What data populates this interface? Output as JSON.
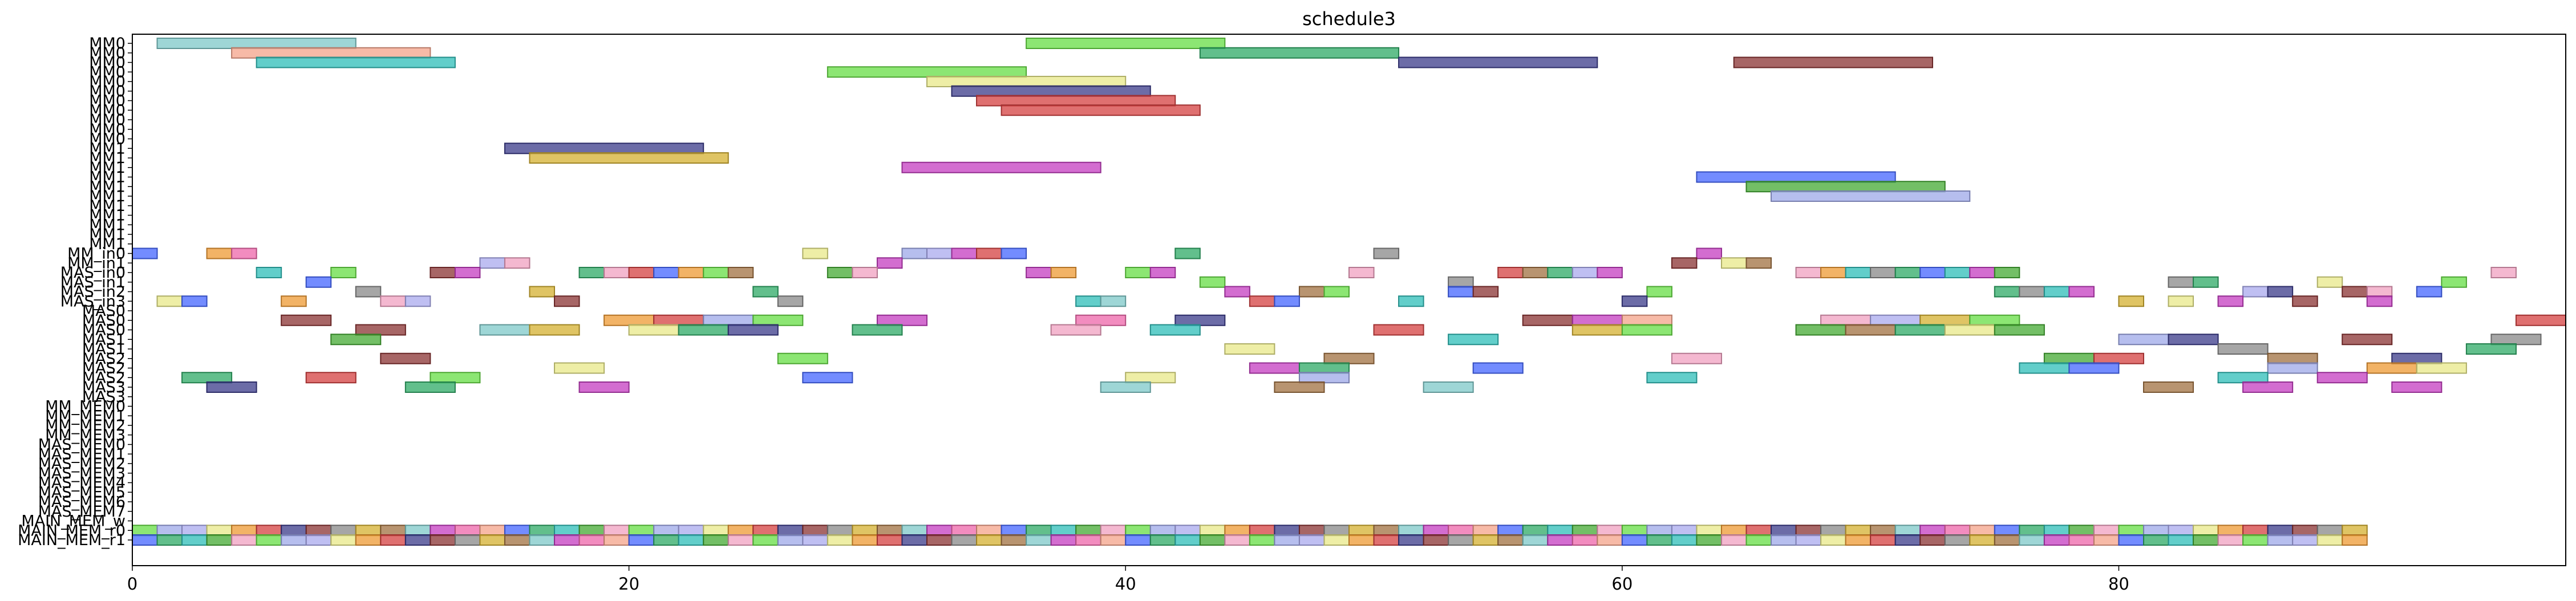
{
  "chart_data": {
    "type": "gantt",
    "title": "schedule3",
    "xlabel": "",
    "ylabel": "",
    "xlim": [
      0,
      98
    ],
    "xticks": [
      0,
      20,
      40,
      60,
      80
    ],
    "grid": false,
    "rows": [
      "MM0",
      "MM0",
      "MM0",
      "MM0",
      "MM0",
      "MM0",
      "MM0",
      "MM0",
      "MM0",
      "MM0",
      "MM0",
      "MM1",
      "MM1",
      "MM1",
      "MM1",
      "MM1",
      "MM1",
      "MM1",
      "MM1",
      "MM1",
      "MM1",
      "MM1",
      "MM_in0",
      "MM_in1",
      "MAS_in0",
      "MAS_in1",
      "MAS_in2",
      "MAS_in3",
      "MAS0",
      "MAS0",
      "MAS0",
      "MAS1",
      "MAS1",
      "MAS2",
      "MAS2",
      "MAS2",
      "MAS3",
      "MAS3",
      "MM_MEM0",
      "MM_MEM1",
      "MM_MEM2",
      "MM_MEM3",
      "MAS_MEM0",
      "MAS_MEM1",
      "MAS_MEM2",
      "MAS_MEM3",
      "MAS_MEM4",
      "MAS_MEM5",
      "MAS_MEM6",
      "MAS_MEM7",
      "MAIN_MEM_w",
      "MAIN_MEM_r0",
      "MAIN_MEM_r1"
    ],
    "palette": [
      "#7ec8c8",
      "#f4a38a",
      "#2ebdb8",
      "#66dd44",
      "#e8e888",
      "#3b3b8a",
      "#d4b030",
      "#c43cc0",
      "#4466ff",
      "#44aa33",
      "#9ea8e8",
      "#ee9933",
      "#8a3333",
      "#a07040",
      "#ee66aa",
      "#2eaa66",
      "#f0a0c0",
      "#aaaaee",
      "#d44040",
      "#888888"
    ],
    "tasks": [
      {
        "row": 0,
        "start": 1,
        "end": 9,
        "c": 0
      },
      {
        "row": 0,
        "start": 36,
        "end": 44,
        "c": 3
      },
      {
        "row": 1,
        "start": 4,
        "end": 12,
        "c": 1
      },
      {
        "row": 1,
        "start": 43,
        "end": 51,
        "c": 15
      },
      {
        "row": 2,
        "start": 5,
        "end": 13,
        "c": 2
      },
      {
        "row": 2,
        "start": 51,
        "end": 59,
        "c": 5
      },
      {
        "row": 2,
        "start": 64.5,
        "end": 72.5,
        "c": 12
      },
      {
        "row": 3,
        "start": 28,
        "end": 36,
        "c": 3
      },
      {
        "row": 4,
        "start": 32,
        "end": 40,
        "c": 4
      },
      {
        "row": 5,
        "start": 33,
        "end": 41,
        "c": 5
      },
      {
        "row": 6,
        "start": 34,
        "end": 42,
        "c": 18
      },
      {
        "row": 7,
        "start": 35,
        "end": 43,
        "c": 18
      },
      {
        "row": 11,
        "start": 15,
        "end": 23,
        "c": 5
      },
      {
        "row": 12,
        "start": 16,
        "end": 24,
        "c": 6
      },
      {
        "row": 13,
        "start": 31,
        "end": 39,
        "c": 7
      },
      {
        "row": 14,
        "start": 63,
        "end": 71,
        "c": 8
      },
      {
        "row": 15,
        "start": 65,
        "end": 73,
        "c": 9
      },
      {
        "row": 16,
        "start": 66,
        "end": 74,
        "c": 10
      },
      {
        "row": 22,
        "start": 0,
        "end": 1,
        "c": 8
      },
      {
        "row": 22,
        "start": 3,
        "end": 4,
        "c": 11
      },
      {
        "row": 22,
        "start": 4,
        "end": 5,
        "c": 14
      },
      {
        "row": 22,
        "start": 27,
        "end": 28,
        "c": 4
      },
      {
        "row": 22,
        "start": 31,
        "end": 32,
        "c": 10
      },
      {
        "row": 22,
        "start": 32,
        "end": 33,
        "c": 17
      },
      {
        "row": 22,
        "start": 33,
        "end": 34,
        "c": 7
      },
      {
        "row": 22,
        "start": 34,
        "end": 35,
        "c": 18
      },
      {
        "row": 22,
        "start": 35,
        "end": 36,
        "c": 8
      },
      {
        "row": 22,
        "start": 42,
        "end": 43,
        "c": 15
      },
      {
        "row": 22,
        "start": 50,
        "end": 51,
        "c": 19
      },
      {
        "row": 22,
        "start": 63,
        "end": 64,
        "c": 7
      },
      {
        "row": 23,
        "start": 14,
        "end": 15,
        "c": 17
      },
      {
        "row": 23,
        "start": 15,
        "end": 16,
        "c": 16
      },
      {
        "row": 23,
        "start": 30,
        "end": 31,
        "c": 7
      },
      {
        "row": 23,
        "start": 62,
        "end": 63,
        "c": 12
      },
      {
        "row": 23,
        "start": 64,
        "end": 65,
        "c": 4
      },
      {
        "row": 23,
        "start": 65,
        "end": 66,
        "c": 13
      },
      {
        "row": 24,
        "start": 5,
        "end": 6,
        "c": 2
      },
      {
        "row": 24,
        "start": 8,
        "end": 9,
        "c": 3
      },
      {
        "row": 24,
        "start": 12,
        "end": 13,
        "c": 12
      },
      {
        "row": 24,
        "start": 13,
        "end": 14,
        "c": 7
      },
      {
        "row": 24,
        "start": 18,
        "end": 19,
        "c": 15
      },
      {
        "row": 24,
        "start": 19,
        "end": 20,
        "c": 16
      },
      {
        "row": 24,
        "start": 20,
        "end": 21,
        "c": 18
      },
      {
        "row": 24,
        "start": 21,
        "end": 22,
        "c": 8
      },
      {
        "row": 24,
        "start": 22,
        "end": 23,
        "c": 11
      },
      {
        "row": 24,
        "start": 23,
        "end": 24,
        "c": 3
      },
      {
        "row": 24,
        "start": 24,
        "end": 25,
        "c": 13
      },
      {
        "row": 24,
        "start": 28,
        "end": 29,
        "c": 9
      },
      {
        "row": 24,
        "start": 29,
        "end": 30,
        "c": 16
      },
      {
        "row": 24,
        "start": 36,
        "end": 37,
        "c": 7
      },
      {
        "row": 24,
        "start": 37,
        "end": 38,
        "c": 11
      },
      {
        "row": 24,
        "start": 40,
        "end": 41,
        "c": 3
      },
      {
        "row": 24,
        "start": 41,
        "end": 42,
        "c": 7
      },
      {
        "row": 24,
        "start": 49,
        "end": 50,
        "c": 16
      },
      {
        "row": 24,
        "start": 55,
        "end": 56,
        "c": 18
      },
      {
        "row": 24,
        "start": 56,
        "end": 57,
        "c": 13
      },
      {
        "row": 24,
        "start": 57,
        "end": 58,
        "c": 15
      },
      {
        "row": 24,
        "start": 58,
        "end": 59,
        "c": 17
      },
      {
        "row": 24,
        "start": 59,
        "end": 60,
        "c": 7
      },
      {
        "row": 24,
        "start": 67,
        "end": 68,
        "c": 16
      },
      {
        "row": 24,
        "start": 68,
        "end": 69,
        "c": 11
      },
      {
        "row": 24,
        "start": 69,
        "end": 70,
        "c": 2
      },
      {
        "row": 24,
        "start": 70,
        "end": 71,
        "c": 19
      },
      {
        "row": 24,
        "start": 71,
        "end": 72,
        "c": 15
      },
      {
        "row": 24,
        "start": 72,
        "end": 73,
        "c": 8
      },
      {
        "row": 24,
        "start": 73,
        "end": 74,
        "c": 2
      },
      {
        "row": 24,
        "start": 74,
        "end": 75,
        "c": 7
      },
      {
        "row": 24,
        "start": 75,
        "end": 76,
        "c": 9
      },
      {
        "row": 24,
        "start": 95,
        "end": 96,
        "c": 16
      },
      {
        "row": 25,
        "start": 7,
        "end": 8,
        "c": 8
      },
      {
        "row": 25,
        "start": 43,
        "end": 44,
        "c": 3
      },
      {
        "row": 25,
        "start": 53,
        "end": 54,
        "c": 19
      },
      {
        "row": 25,
        "start": 82,
        "end": 83,
        "c": 19
      },
      {
        "row": 25,
        "start": 83,
        "end": 84,
        "c": 15
      },
      {
        "row": 25,
        "start": 88,
        "end": 89,
        "c": 4
      },
      {
        "row": 25,
        "start": 93,
        "end": 94,
        "c": 3
      },
      {
        "row": 26,
        "start": 9,
        "end": 10,
        "c": 19
      },
      {
        "row": 26,
        "start": 16,
        "end": 17,
        "c": 6
      },
      {
        "row": 26,
        "start": 25,
        "end": 26,
        "c": 15
      },
      {
        "row": 26,
        "start": 44,
        "end": 45,
        "c": 7
      },
      {
        "row": 26,
        "start": 47,
        "end": 48,
        "c": 13
      },
      {
        "row": 26,
        "start": 48,
        "end": 49,
        "c": 3
      },
      {
        "row": 26,
        "start": 53,
        "end": 54,
        "c": 8
      },
      {
        "row": 26,
        "start": 54,
        "end": 55,
        "c": 12
      },
      {
        "row": 26,
        "start": 61,
        "end": 62,
        "c": 3
      },
      {
        "row": 26,
        "start": 75,
        "end": 76,
        "c": 15
      },
      {
        "row": 26,
        "start": 76,
        "end": 77,
        "c": 19
      },
      {
        "row": 26,
        "start": 77,
        "end": 78,
        "c": 2
      },
      {
        "row": 26,
        "start": 78,
        "end": 79,
        "c": 7
      },
      {
        "row": 26,
        "start": 85,
        "end": 86,
        "c": 17
      },
      {
        "row": 26,
        "start": 86,
        "end": 87,
        "c": 5
      },
      {
        "row": 26,
        "start": 89,
        "end": 90,
        "c": 12
      },
      {
        "row": 26,
        "start": 90,
        "end": 91,
        "c": 16
      },
      {
        "row": 26,
        "start": 92,
        "end": 93,
        "c": 8
      },
      {
        "row": 27,
        "start": 1,
        "end": 2,
        "c": 4
      },
      {
        "row": 27,
        "start": 2,
        "end": 3,
        "c": 8
      },
      {
        "row": 27,
        "start": 6,
        "end": 7,
        "c": 11
      },
      {
        "row": 27,
        "start": 10,
        "end": 11,
        "c": 16
      },
      {
        "row": 27,
        "start": 11,
        "end": 12,
        "c": 17
      },
      {
        "row": 27,
        "start": 17,
        "end": 18,
        "c": 12
      },
      {
        "row": 27,
        "start": 26,
        "end": 27,
        "c": 19
      },
      {
        "row": 27,
        "start": 38,
        "end": 39,
        "c": 2
      },
      {
        "row": 27,
        "start": 39,
        "end": 40,
        "c": 0
      },
      {
        "row": 27,
        "start": 45,
        "end": 46,
        "c": 18
      },
      {
        "row": 27,
        "start": 46,
        "end": 47,
        "c": 8
      },
      {
        "row": 27,
        "start": 51,
        "end": 52,
        "c": 2
      },
      {
        "row": 27,
        "start": 60,
        "end": 61,
        "c": 5
      },
      {
        "row": 27,
        "start": 80,
        "end": 81,
        "c": 6
      },
      {
        "row": 27,
        "start": 82,
        "end": 83,
        "c": 4
      },
      {
        "row": 27,
        "start": 84,
        "end": 85,
        "c": 7
      },
      {
        "row": 27,
        "start": 87,
        "end": 88,
        "c": 12
      },
      {
        "row": 27,
        "start": 90,
        "end": 91,
        "c": 7
      },
      {
        "row": 29,
        "start": 6,
        "end": 8,
        "c": 12
      },
      {
        "row": 29,
        "start": 19,
        "end": 21,
        "c": 11
      },
      {
        "row": 29,
        "start": 21,
        "end": 23,
        "c": 18
      },
      {
        "row": 29,
        "start": 23,
        "end": 25,
        "c": 10
      },
      {
        "row": 29,
        "start": 25,
        "end": 27,
        "c": 3
      },
      {
        "row": 29,
        "start": 30,
        "end": 32,
        "c": 7
      },
      {
        "row": 29,
        "start": 38,
        "end": 40,
        "c": 14
      },
      {
        "row": 29,
        "start": 42,
        "end": 44,
        "c": 5
      },
      {
        "row": 29,
        "start": 56,
        "end": 58,
        "c": 12
      },
      {
        "row": 29,
        "start": 58,
        "end": 60,
        "c": 7
      },
      {
        "row": 29,
        "start": 60,
        "end": 62,
        "c": 1
      },
      {
        "row": 29,
        "start": 68,
        "end": 70,
        "c": 16
      },
      {
        "row": 29,
        "start": 70,
        "end": 72,
        "c": 17
      },
      {
        "row": 29,
        "start": 72,
        "end": 74,
        "c": 6
      },
      {
        "row": 29,
        "start": 74,
        "end": 76,
        "c": 3
      },
      {
        "row": 29,
        "start": 96,
        "end": 98,
        "c": 18
      },
      {
        "row": 30,
        "start": 9,
        "end": 11,
        "c": 12
      },
      {
        "row": 30,
        "start": 14,
        "end": 16,
        "c": 0
      },
      {
        "row": 30,
        "start": 16,
        "end": 18,
        "c": 6
      },
      {
        "row": 30,
        "start": 20,
        "end": 22,
        "c": 4
      },
      {
        "row": 30,
        "start": 22,
        "end": 24,
        "c": 15
      },
      {
        "row": 30,
        "start": 24,
        "end": 26,
        "c": 5
      },
      {
        "row": 30,
        "start": 29,
        "end": 31,
        "c": 15
      },
      {
        "row": 30,
        "start": 37,
        "end": 39,
        "c": 16
      },
      {
        "row": 30,
        "start": 41,
        "end": 43,
        "c": 2
      },
      {
        "row": 30,
        "start": 50,
        "end": 52,
        "c": 18
      },
      {
        "row": 30,
        "start": 58,
        "end": 60,
        "c": 6
      },
      {
        "row": 30,
        "start": 60,
        "end": 62,
        "c": 3
      },
      {
        "row": 30,
        "start": 67,
        "end": 69,
        "c": 9
      },
      {
        "row": 30,
        "start": 69,
        "end": 71,
        "c": 13
      },
      {
        "row": 30,
        "start": 71,
        "end": 73,
        "c": 15
      },
      {
        "row": 30,
        "start": 73,
        "end": 75,
        "c": 4
      },
      {
        "row": 30,
        "start": 75,
        "end": 77,
        "c": 9
      },
      {
        "row": 31,
        "start": 8,
        "end": 10,
        "c": 9
      },
      {
        "row": 31,
        "start": 53,
        "end": 55,
        "c": 2
      },
      {
        "row": 31,
        "start": 80,
        "end": 82,
        "c": 10
      },
      {
        "row": 31,
        "start": 82,
        "end": 84,
        "c": 5
      },
      {
        "row": 31,
        "start": 89,
        "end": 91,
        "c": 12
      },
      {
        "row": 31,
        "start": 95,
        "end": 97,
        "c": 19
      },
      {
        "row": 32,
        "start": 44,
        "end": 46,
        "c": 4
      },
      {
        "row": 32,
        "start": 84,
        "end": 86,
        "c": 19
      },
      {
        "row": 32,
        "start": 94,
        "end": 96,
        "c": 15
      },
      {
        "row": 33,
        "start": 10,
        "end": 12,
        "c": 12
      },
      {
        "row": 33,
        "start": 26,
        "end": 28,
        "c": 3
      },
      {
        "row": 33,
        "start": 48,
        "end": 50,
        "c": 13
      },
      {
        "row": 33,
        "start": 62,
        "end": 64,
        "c": 16
      },
      {
        "row": 33,
        "start": 77,
        "end": 79,
        "c": 9
      },
      {
        "row": 33,
        "start": 79,
        "end": 81,
        "c": 18
      },
      {
        "row": 33,
        "start": 86,
        "end": 88,
        "c": 13
      },
      {
        "row": 33,
        "start": 91,
        "end": 93,
        "c": 5
      },
      {
        "row": 34,
        "start": 17,
        "end": 19,
        "c": 4
      },
      {
        "row": 34,
        "start": 45,
        "end": 47,
        "c": 7
      },
      {
        "row": 34,
        "start": 47,
        "end": 49,
        "c": 15
      },
      {
        "row": 34,
        "start": 54,
        "end": 56,
        "c": 8
      },
      {
        "row": 34,
        "start": 76,
        "end": 78,
        "c": 2
      },
      {
        "row": 34,
        "start": 78,
        "end": 80,
        "c": 8
      },
      {
        "row": 34,
        "start": 86,
        "end": 88,
        "c": 10
      },
      {
        "row": 34,
        "start": 90,
        "end": 92,
        "c": 11
      },
      {
        "row": 34,
        "start": 92,
        "end": 94,
        "c": 4
      },
      {
        "row": 35,
        "start": 2,
        "end": 4,
        "c": 15
      },
      {
        "row": 35,
        "start": 7,
        "end": 9,
        "c": 18
      },
      {
        "row": 35,
        "start": 12,
        "end": 14,
        "c": 3
      },
      {
        "row": 35,
        "start": 27,
        "end": 29,
        "c": 8
      },
      {
        "row": 35,
        "start": 40,
        "end": 42,
        "c": 4
      },
      {
        "row": 35,
        "start": 47,
        "end": 49,
        "c": 10
      },
      {
        "row": 35,
        "start": 61,
        "end": 63,
        "c": 2
      },
      {
        "row": 35,
        "start": 84,
        "end": 86,
        "c": 2
      },
      {
        "row": 35,
        "start": 88,
        "end": 90,
        "c": 7
      },
      {
        "row": 36,
        "start": 3,
        "end": 5,
        "c": 5
      },
      {
        "row": 36,
        "start": 11,
        "end": 13,
        "c": 15
      },
      {
        "row": 36,
        "start": 18,
        "end": 20,
        "c": 7
      },
      {
        "row": 36,
        "start": 39,
        "end": 41,
        "c": 0
      },
      {
        "row": 36,
        "start": 46,
        "end": 48,
        "c": 13
      },
      {
        "row": 36,
        "start": 52,
        "end": 54,
        "c": 0
      },
      {
        "row": 36,
        "start": 81,
        "end": 83,
        "c": 13
      },
      {
        "row": 36,
        "start": 85,
        "end": 87,
        "c": 7
      },
      {
        "row": 36,
        "start": 91,
        "end": 93,
        "c": 7
      }
    ]
  }
}
